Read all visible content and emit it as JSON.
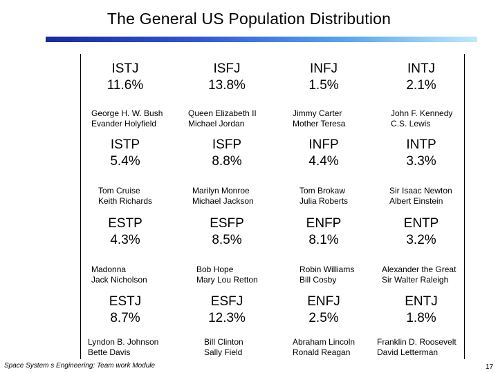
{
  "title": "The General US Population Distribution",
  "colors": {
    "title_bar_start": "#1a2a9a",
    "title_bar_end": "#bfe8fb"
  },
  "rows": [
    [
      {
        "type": "ISTJ",
        "percent": "11.6%",
        "famous": [
          "George H. W. Bush",
          "Evander Holyfield"
        ]
      },
      {
        "type": "ISFJ",
        "percent": "13.8%",
        "famous": [
          "Queen Elizabeth II",
          "Michael Jordan"
        ]
      },
      {
        "type": "INFJ",
        "percent": "1.5%",
        "famous": [
          "Jimmy Carter",
          "Mother Teresa"
        ]
      },
      {
        "type": "INTJ",
        "percent": "2.1%",
        "famous": [
          "John F. Kennedy",
          "C.S. Lewis"
        ]
      }
    ],
    [
      {
        "type": "ISTP",
        "percent": "5.4%",
        "famous": [
          "Tom Cruise",
          "Keith Richards"
        ]
      },
      {
        "type": "ISFP",
        "percent": "8.8%",
        "famous": [
          "Marilyn Monroe",
          "Michael Jackson"
        ]
      },
      {
        "type": "INFP",
        "percent": "4.4%",
        "famous": [
          "Tom Brokaw",
          "Julia Roberts"
        ]
      },
      {
        "type": "INTP",
        "percent": "3.3%",
        "famous": [
          "Sir Isaac Newton",
          "Albert Einstein"
        ]
      }
    ],
    [
      {
        "type": "ESTP",
        "percent": "4.3%",
        "famous": [
          "Madonna",
          "Jack Nicholson"
        ]
      },
      {
        "type": "ESFP",
        "percent": "8.5%",
        "famous": [
          "Bob Hope",
          "Mary Lou Retton"
        ]
      },
      {
        "type": "ENFP",
        "percent": "8.1%",
        "famous": [
          "Robin Williams",
          "Bill Cosby"
        ]
      },
      {
        "type": "ENTP",
        "percent": "3.2%",
        "famous": [
          "Alexander the Great",
          "Sir Walter Raleigh"
        ]
      }
    ],
    [
      {
        "type": "ESTJ",
        "percent": "8.7%",
        "famous": [
          "Lyndon B. Johnson",
          "Bette Davis"
        ]
      },
      {
        "type": "ESFJ",
        "percent": "12.3%",
        "famous": [
          "Bill Clinton",
          "Sally Field"
        ]
      },
      {
        "type": "ENFJ",
        "percent": "2.5%",
        "famous": [
          "Abraham Lincoln",
          "Ronald Reagan"
        ]
      },
      {
        "type": "ENTJ",
        "percent": "1.8%",
        "famous": [
          "Franklin D. Roosevelt",
          "David Letterman"
        ]
      }
    ]
  ],
  "footer": "Space System s Engineering: Team work Module",
  "page_number": "17"
}
